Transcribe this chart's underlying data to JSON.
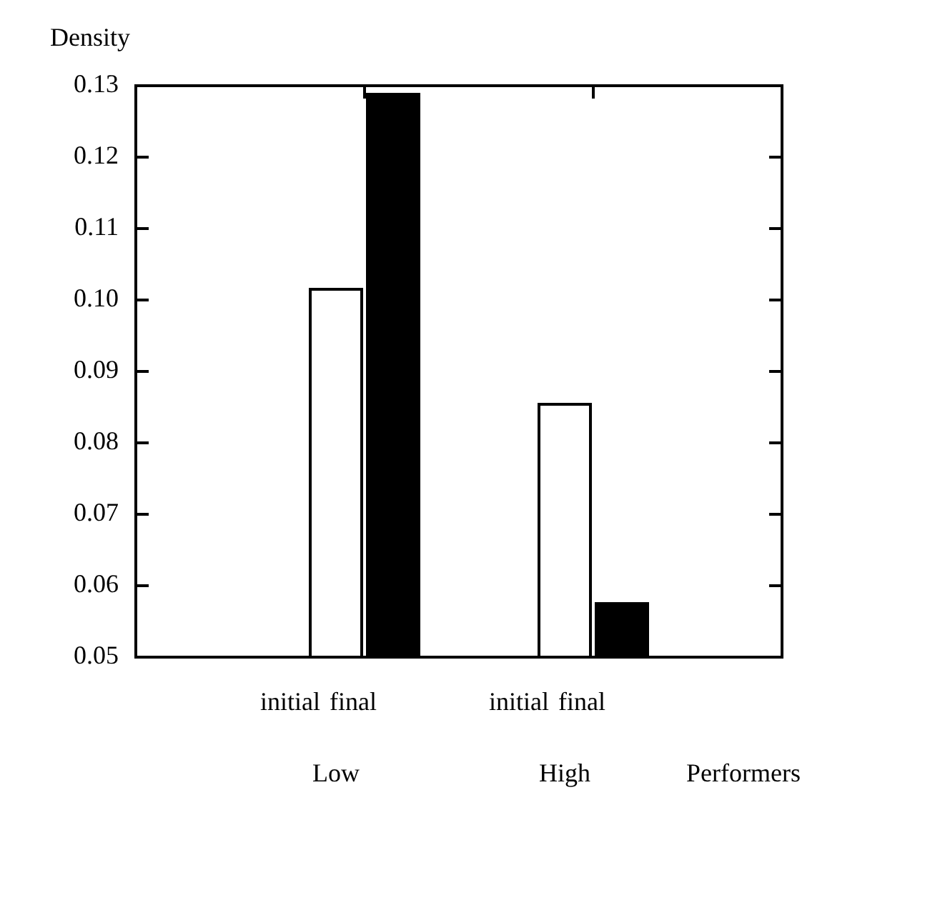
{
  "chart_data": {
    "type": "bar",
    "ylabel": "Density",
    "xlabel": "Performers",
    "categories": [
      "Low",
      "High"
    ],
    "series": [
      {
        "name": "initial",
        "color": "#ffffff",
        "values": [
          0.1015,
          0.0854
        ]
      },
      {
        "name": "final",
        "color": "#000000",
        "values": [
          0.1288,
          0.0575
        ]
      }
    ],
    "ylim": [
      0.05,
      0.13
    ],
    "yticks": [
      0.05,
      0.06,
      0.07,
      0.08,
      0.09,
      {
        "value": 0.1,
        "label": "0.10"
      },
      0.11,
      0.12,
      0.13
    ],
    "grid": false,
    "legend": false
  }
}
